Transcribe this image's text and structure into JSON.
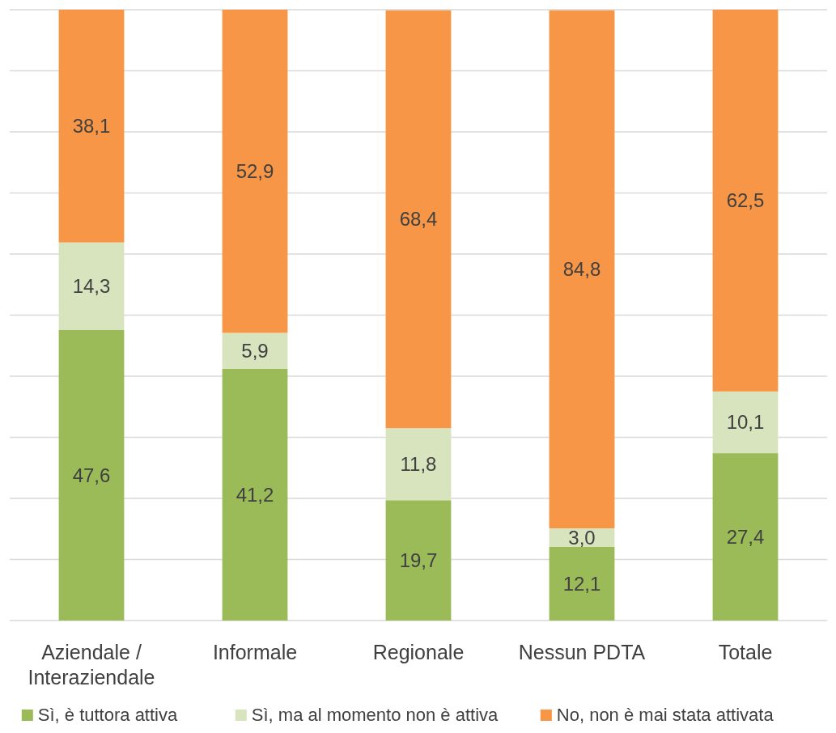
{
  "chart_data": {
    "type": "bar",
    "stacked": true,
    "categories": [
      "Aziendale / Interaziendale",
      "Informale",
      "Regionale",
      "Nessun PDTA",
      "Totale"
    ],
    "series": [
      {
        "name": "Sì, è tuttora attiva",
        "color": "#9bbb59",
        "values": [
          47.6,
          41.2,
          19.7,
          12.1,
          27.4
        ],
        "value_labels": [
          "47,6",
          "41,2",
          "19,7",
          "12,1",
          "27,4"
        ]
      },
      {
        "name": "Sì, ma al momento non è attiva",
        "color": "#d7e4bd",
        "values": [
          14.3,
          5.9,
          11.8,
          3.0,
          10.1
        ],
        "value_labels": [
          "14,3",
          "5,9",
          "11,8",
          "3,0",
          "10,1"
        ]
      },
      {
        "name": "No, non è mai stata attivata",
        "color": "#f79646",
        "values": [
          38.1,
          52.9,
          68.4,
          84.8,
          62.5
        ],
        "value_labels": [
          "38,1",
          "52,9",
          "68,4",
          "84,8",
          "62,5"
        ]
      }
    ],
    "tick_labels": "x",
    "grid": "y",
    "legend": "bottom"
  }
}
